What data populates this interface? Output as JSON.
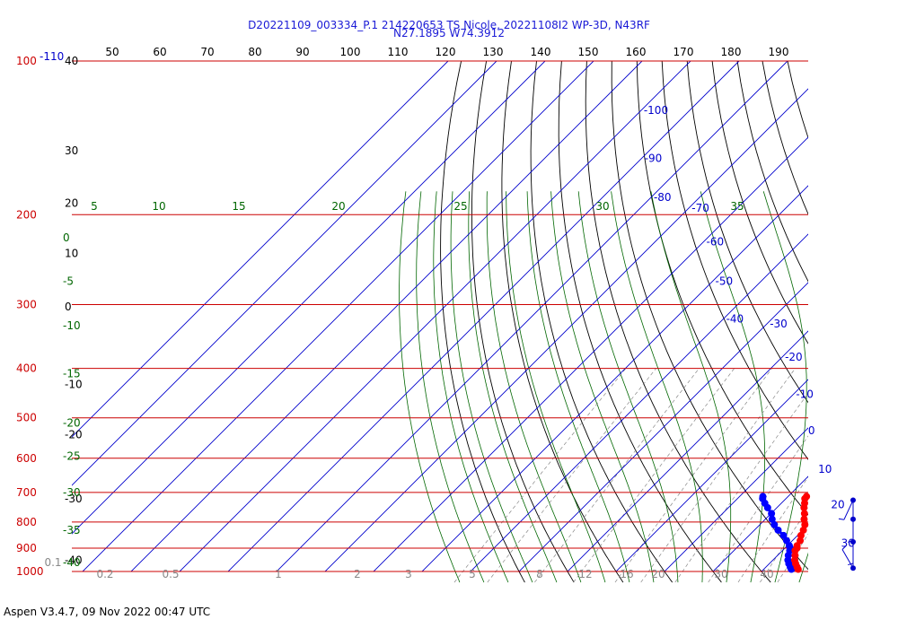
{
  "title": {
    "line1": "D20221109_003334_P.1 214220653 TS Nicole, 20221108I2 WP-3D, N43RF",
    "line2": "N27.1895 W74.3912"
  },
  "footer": "Aspen V3.4.7, 09 Nov 2022  00:47 UTC",
  "colors": {
    "isobar": "#cc0000",
    "isotherm": "#0000cc",
    "dry_adiabat": "#000000",
    "moist_adiabat": "#006600",
    "mixing_ratio": "#888888",
    "temperature_trace": "#ff0000",
    "dewpoint_trace": "#0000ff",
    "wind_barb": "#0000cc"
  },
  "chart_data": {
    "type": "skew-t",
    "pressure_labels_hpa": [
      "100",
      "200",
      "300",
      "400",
      "500",
      "600",
      "700",
      "800",
      "900",
      "1000"
    ],
    "pressure_top_label": "-110",
    "top_axis_labels": [
      "50",
      "60",
      "70",
      "80",
      "90",
      "100",
      "110",
      "120",
      "130",
      "140",
      "150",
      "160",
      "170",
      "180",
      "190"
    ],
    "left_black_labels": [
      {
        "text": "40",
        "p": 100
      },
      {
        "text": "30",
        "p": 150
      },
      {
        "text": "20",
        "p": 190
      },
      {
        "text": "10",
        "p": 238
      },
      {
        "text": "0",
        "p": 303
      },
      {
        "text": "-10",
        "p": 430
      },
      {
        "text": "-20",
        "p": 540
      },
      {
        "text": "-30",
        "p": 720
      },
      {
        "text": "-40",
        "p": 950
      }
    ],
    "isotherm_labels": [
      {
        "text": "-100",
        "t": -100,
        "p": 125
      },
      {
        "text": "-90",
        "t": -90,
        "p": 155
      },
      {
        "text": "-80",
        "t": -80,
        "p": 185
      },
      {
        "text": "-70",
        "t": -70,
        "p": 194
      },
      {
        "text": "-60",
        "t": -60,
        "p": 226
      },
      {
        "text": "-50",
        "t": -50,
        "p": 270
      },
      {
        "text": "-40",
        "t": -40,
        "p": 320
      },
      {
        "text": "-30",
        "t": -30,
        "p": 327
      },
      {
        "text": "-20",
        "t": -20,
        "p": 380
      },
      {
        "text": "-10",
        "t": -10,
        "p": 450
      },
      {
        "text": "0",
        "t": 0,
        "p": 530
      },
      {
        "text": "10",
        "t": 10,
        "p": 630
      },
      {
        "text": "20",
        "t": 20,
        "p": 740
      },
      {
        "text": "30",
        "t": 30,
        "p": 880
      }
    ],
    "theta_e_top_labels": [
      "5",
      "10",
      "15",
      "20",
      "25",
      "30",
      "35"
    ],
    "theta_e_left_labels": [
      {
        "text": "0",
        "p": 222
      },
      {
        "text": "-5",
        "p": 270
      },
      {
        "text": "-10",
        "p": 330
      },
      {
        "text": "-15",
        "p": 410
      },
      {
        "text": "-20",
        "p": 512
      },
      {
        "text": "-25",
        "p": 595
      },
      {
        "text": "-30",
        "p": 700
      },
      {
        "text": "-35",
        "p": 830
      },
      {
        "text": "-40",
        "p": 960
      }
    ],
    "mixing_ratio_labels": [
      "0.1",
      "0.2",
      "0.5",
      "1",
      "2",
      "3",
      "5",
      "8",
      "12",
      "16",
      "20",
      "30",
      "40"
    ],
    "temperature_profile": [
      {
        "p": 713,
        "t": 13.8
      },
      {
        "p": 720,
        "t": 13.9
      },
      {
        "p": 735,
        "t": 14.8
      },
      {
        "p": 750,
        "t": 15.6
      },
      {
        "p": 770,
        "t": 16.9
      },
      {
        "p": 790,
        "t": 18.0
      },
      {
        "p": 810,
        "t": 19.3
      },
      {
        "p": 830,
        "t": 20.1
      },
      {
        "p": 850,
        "t": 20.7
      },
      {
        "p": 870,
        "t": 21.6
      },
      {
        "p": 890,
        "t": 22.0
      },
      {
        "p": 900,
        "t": 22.5
      },
      {
        "p": 910,
        "t": 22.6
      },
      {
        "p": 930,
        "t": 23.6
      },
      {
        "p": 950,
        "t": 24.5
      },
      {
        "p": 965,
        "t": 25.4
      },
      {
        "p": 980,
        "t": 26.4
      },
      {
        "p": 990,
        "t": 27.1
      }
    ],
    "dewpoint_profile": [
      {
        "p": 713,
        "td": 4.8
      },
      {
        "p": 720,
        "td": 5.2
      },
      {
        "p": 735,
        "td": 6.6
      },
      {
        "p": 750,
        "td": 8.1
      },
      {
        "p": 770,
        "td": 10.1
      },
      {
        "p": 790,
        "td": 11.4
      },
      {
        "p": 810,
        "td": 13.0
      },
      {
        "p": 830,
        "td": 14.9
      },
      {
        "p": 850,
        "td": 17.1
      },
      {
        "p": 870,
        "td": 18.8
      },
      {
        "p": 890,
        "td": 20.4
      },
      {
        "p": 900,
        "td": 21.1
      },
      {
        "p": 910,
        "td": 21.5
      },
      {
        "p": 930,
        "td": 22.2
      },
      {
        "p": 950,
        "td": 23.1
      },
      {
        "p": 965,
        "td": 24.0
      },
      {
        "p": 980,
        "td": 25.0
      },
      {
        "p": 990,
        "td": 25.7
      }
    ],
    "wind_barbs": [
      {
        "p": 725,
        "dir": 205,
        "speed": 10
      },
      {
        "p": 790,
        "dir": 180,
        "speed": 5
      },
      {
        "p": 875,
        "dir": 180,
        "speed": 5
      },
      {
        "p": 985,
        "dir": 330,
        "speed": 5
      }
    ]
  }
}
